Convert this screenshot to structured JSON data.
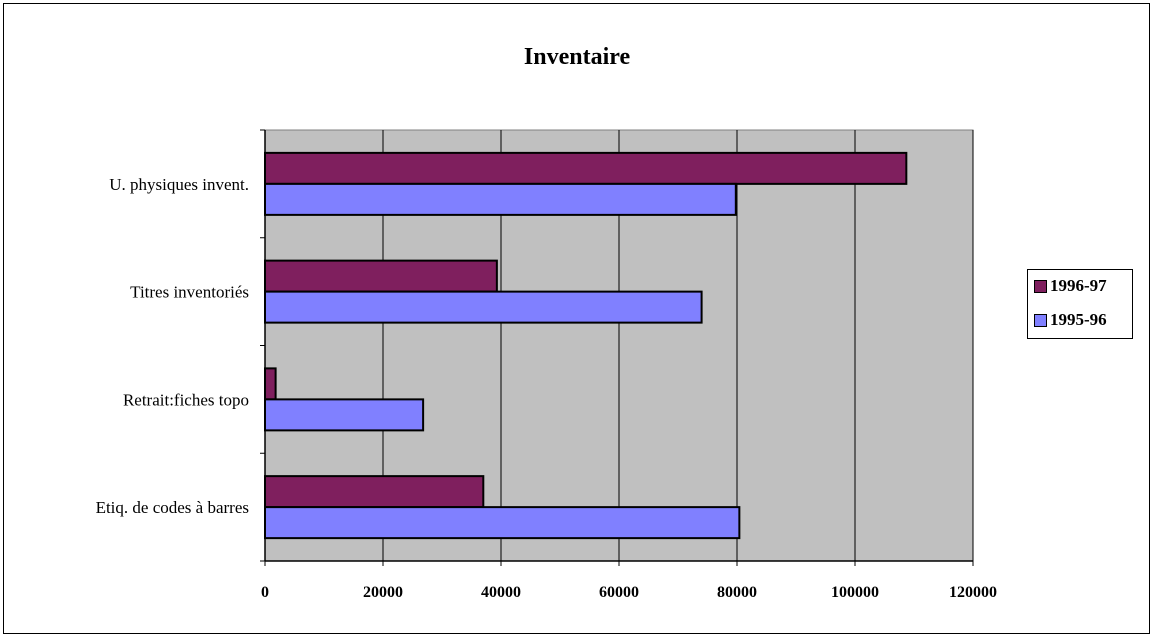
{
  "chart_data": {
    "type": "bar",
    "orientation": "horizontal",
    "title": "Inventaire",
    "xlabel": "",
    "ylabel": "",
    "categories": [
      "U. physiques invent.",
      "Titres inventoriés",
      "Retrait:fiches topo",
      "Etiq. de codes à barres"
    ],
    "series": [
      {
        "name": "1996-97",
        "color": "#7f1f5e",
        "values": [
          108700,
          39300,
          1800,
          37000
        ]
      },
      {
        "name": "1995-96",
        "color": "#8080ff",
        "values": [
          79800,
          74000,
          26800,
          80400
        ]
      }
    ],
    "xlim": [
      0,
      120000
    ],
    "xticks": [
      "0",
      "20000",
      "40000",
      "60000",
      "80000",
      "100000",
      "120000"
    ],
    "grid": true,
    "legend_position": "right",
    "plot_background": "#c0c0c0"
  }
}
